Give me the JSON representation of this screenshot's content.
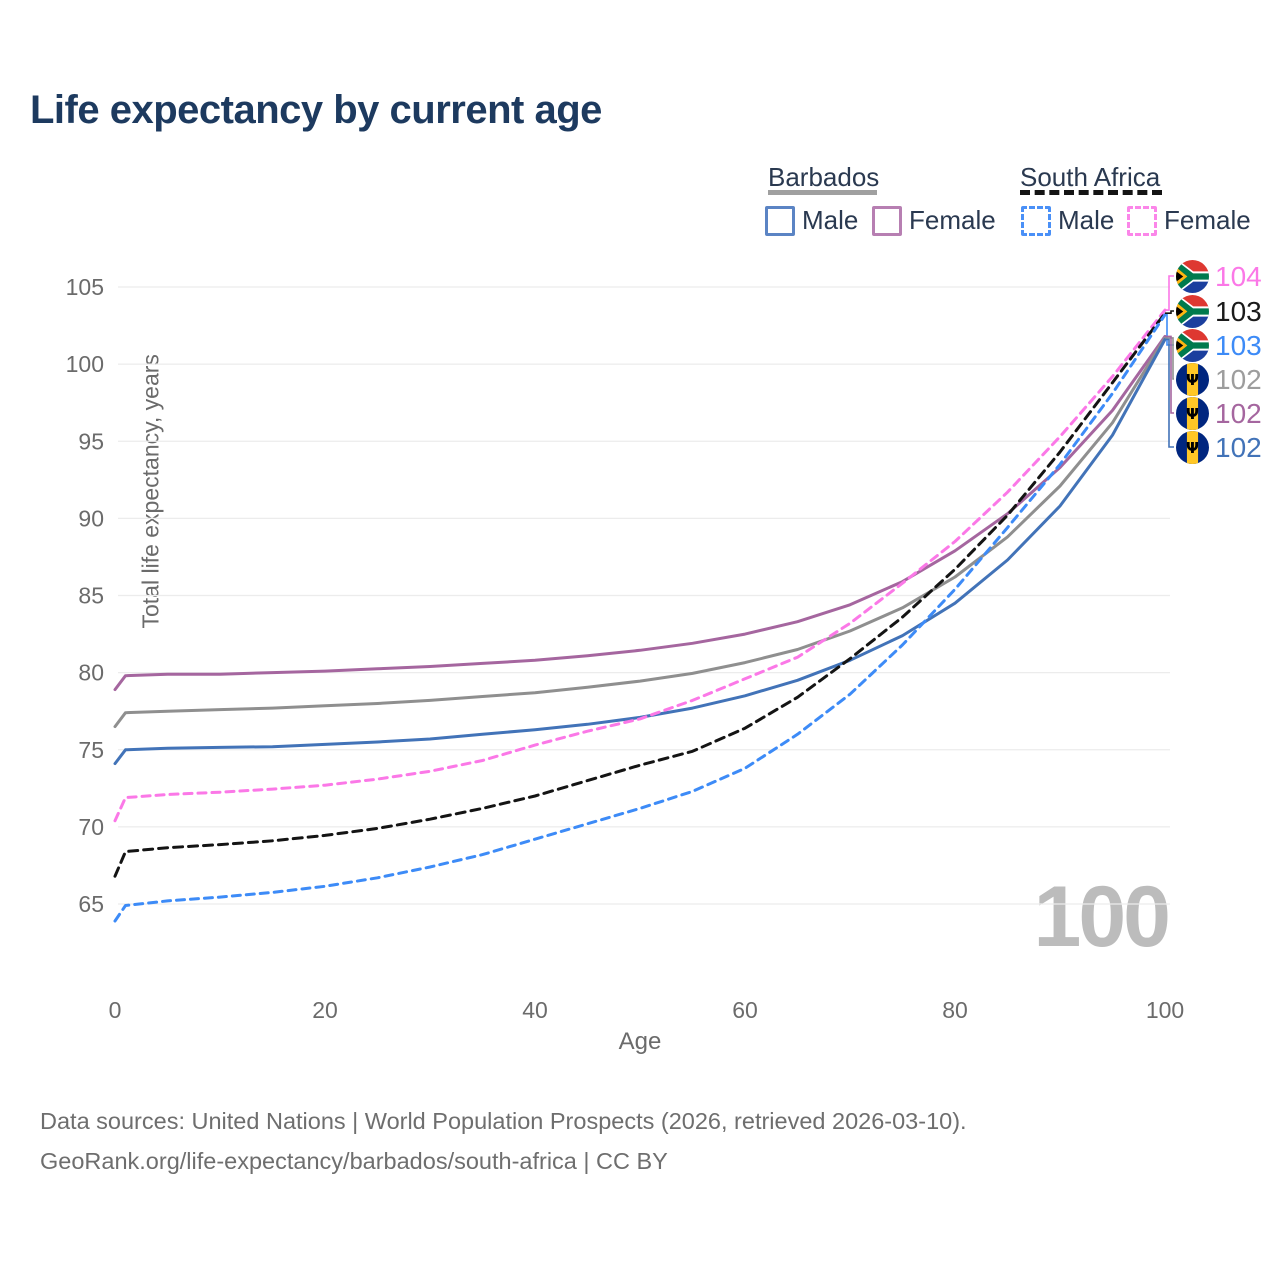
{
  "title": "Life expectancy by current age",
  "legend": {
    "groups": [
      {
        "country": "Barbados",
        "line_style": "solid",
        "underline_color": "#a0a0a0",
        "items": [
          {
            "label": "Male",
            "box_color": "#5b84c4",
            "dashed": false
          },
          {
            "label": "Female",
            "box_color": "#b77fb2",
            "dashed": false
          }
        ]
      },
      {
        "country": "South Africa",
        "line_style": "dashed",
        "underline_color": "#141414",
        "items": [
          {
            "label": "Male",
            "box_color": "#4a90f7",
            "dashed": true
          },
          {
            "label": "Female",
            "box_color": "#fb86e9",
            "dashed": true
          }
        ]
      }
    ]
  },
  "y_axis": {
    "title": "Total life expectancy, years",
    "ticks": [
      65,
      70,
      75,
      80,
      85,
      90,
      95,
      100,
      105
    ],
    "min": 61,
    "max": 106
  },
  "x_axis": {
    "title": "Age",
    "ticks": [
      0,
      20,
      40,
      60,
      80,
      100
    ],
    "min": 0,
    "max": 100
  },
  "watermark": "100",
  "chart_data": {
    "type": "line",
    "title": "Life expectancy by current age",
    "xlabel": "Age",
    "ylabel": "Total life expectancy, years",
    "xlim": [
      0,
      100
    ],
    "ylim": [
      61,
      106
    ],
    "grid": "horizontal",
    "x": [
      0,
      1,
      5,
      10,
      15,
      20,
      25,
      30,
      35,
      40,
      45,
      50,
      55,
      60,
      65,
      70,
      75,
      80,
      85,
      90,
      95,
      100
    ],
    "series": [
      {
        "name": "Barbados Female",
        "country": "Barbados",
        "sex": "female",
        "color": "#a5669f",
        "dash": null,
        "values": [
          78.9,
          79.8,
          79.9,
          79.9,
          80.0,
          80.1,
          80.25,
          80.4,
          80.6,
          80.8,
          81.1,
          81.45,
          81.9,
          82.5,
          83.3,
          84.4,
          85.9,
          87.9,
          90.3,
          93.3,
          97.0,
          101.8
        ]
      },
      {
        "name": "Barbados (all)",
        "country": "Barbados",
        "sex": "all",
        "color": "#8f8f8f",
        "dash": null,
        "values": [
          76.5,
          77.4,
          77.5,
          77.6,
          77.7,
          77.85,
          78.0,
          78.2,
          78.45,
          78.7,
          79.05,
          79.45,
          79.95,
          80.65,
          81.5,
          82.7,
          84.2,
          86.2,
          88.8,
          92.1,
          96.2,
          101.7
        ]
      },
      {
        "name": "Barbados Male",
        "country": "Barbados",
        "sex": "male",
        "color": "#4273b8",
        "dash": null,
        "values": [
          74.1,
          75.0,
          75.1,
          75.15,
          75.2,
          75.35,
          75.5,
          75.7,
          76.0,
          76.3,
          76.65,
          77.1,
          77.7,
          78.5,
          79.5,
          80.8,
          82.4,
          84.5,
          87.3,
          90.8,
          95.4,
          101.6
        ]
      },
      {
        "name": "South Africa Female",
        "country": "South Africa",
        "sex": "female",
        "color": "#fb78e7",
        "dash": "8 6",
        "values": [
          70.4,
          71.9,
          72.1,
          72.25,
          72.45,
          72.7,
          73.1,
          73.6,
          74.3,
          75.3,
          76.2,
          77.0,
          78.2,
          79.6,
          81.0,
          83.2,
          85.8,
          88.5,
          91.7,
          95.3,
          99.2,
          103.5
        ]
      },
      {
        "name": "South Africa (all)",
        "country": "South Africa",
        "sex": "all",
        "color": "#141414",
        "dash": "9 6",
        "values": [
          66.8,
          68.4,
          68.65,
          68.85,
          69.1,
          69.45,
          69.9,
          70.5,
          71.2,
          72.0,
          73.0,
          74.0,
          74.9,
          76.4,
          78.4,
          80.9,
          83.6,
          86.7,
          90.2,
          94.3,
          98.8,
          103.3
        ]
      },
      {
        "name": "South Africa Male",
        "country": "South Africa",
        "sex": "male",
        "color": "#3d8bf7",
        "dash": "8 6",
        "values": [
          63.9,
          64.9,
          65.2,
          65.45,
          65.75,
          66.15,
          66.7,
          67.4,
          68.2,
          69.2,
          70.2,
          71.2,
          72.3,
          73.8,
          76.0,
          78.6,
          81.8,
          85.4,
          89.4,
          93.5,
          98.1,
          103.2
        ]
      }
    ],
    "end_labels": [
      {
        "value": "104",
        "color": "#fb78e7",
        "flag": "south-africa",
        "series": 3
      },
      {
        "value": "103",
        "color": "#1a1a1a",
        "flag": "south-africa",
        "series": 4
      },
      {
        "value": "103",
        "color": "#3d8bf7",
        "flag": "south-africa",
        "series": 5
      },
      {
        "value": "102",
        "color": "#9d9d9d",
        "flag": "barbados",
        "series": 1
      },
      {
        "value": "102",
        "color": "#a5669f",
        "flag": "barbados",
        "series": 0
      },
      {
        "value": "102",
        "color": "#4273b8",
        "flag": "barbados",
        "series": 2
      }
    ]
  },
  "footer": {
    "line1": "Data sources: United Nations | World Population Prospects (2026, retrieved 2026-03-10).",
    "line2": "GeoRank.org/life-expectancy/barbados/south-africa | CC BY"
  },
  "flag_colors": {
    "south_africa": {
      "red": "#de3831",
      "blue": "#1b3f9e",
      "green": "#007a4d",
      "gold": "#ffb612",
      "black": "#000000",
      "white": "#ffffff"
    },
    "barbados": {
      "blue": "#00267f",
      "gold": "#ffc726",
      "trident": "#000000"
    }
  }
}
